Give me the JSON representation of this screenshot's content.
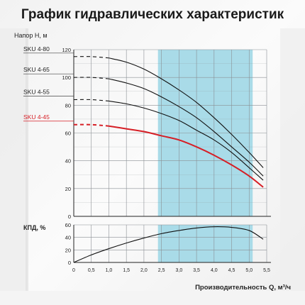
{
  "title": "График гидравлических характеристик",
  "colors": {
    "band": "#a9dbe8",
    "red": "#d61f26",
    "black": "#111111",
    "grid": "#8a8f94"
  },
  "chart_data": [
    {
      "type": "line",
      "ylabel": "Напор H, м",
      "xlim": [
        0,
        5.5
      ],
      "ylim": [
        0,
        120
      ],
      "yticks": [
        0,
        20,
        40,
        60,
        80,
        100,
        120
      ],
      "grid": true,
      "highlight_band": [
        2.4,
        5.1
      ],
      "series": [
        {
          "name": "SKU 4-80",
          "color": "#111111",
          "dashed_to": 1.0,
          "x": [
            0,
            0.5,
            1.0,
            1.5,
            2.0,
            2.5,
            3.0,
            3.5,
            4.0,
            4.5,
            5.0,
            5.4
          ],
          "y": [
            115,
            115,
            114,
            111,
            106,
            99,
            91,
            82,
            71,
            59,
            46,
            35
          ]
        },
        {
          "name": "SKU 4-65",
          "color": "#111111",
          "dashed_to": 1.0,
          "x": [
            0,
            0.5,
            1.0,
            1.5,
            2.0,
            2.5,
            3.0,
            3.5,
            4.0,
            4.5,
            5.0,
            5.4
          ],
          "y": [
            100,
            100,
            99,
            96,
            92,
            86,
            79,
            71,
            61,
            50,
            39,
            29
          ]
        },
        {
          "name": "SKU 4-55",
          "color": "#111111",
          "dashed_to": 1.0,
          "x": [
            0,
            0.5,
            1.0,
            1.5,
            2.0,
            2.5,
            3.0,
            3.5,
            4.0,
            4.5,
            5.0,
            5.4
          ],
          "y": [
            84,
            84,
            83,
            81,
            78,
            74,
            69,
            62,
            55,
            46,
            35,
            26
          ]
        },
        {
          "name": "SKU 4-45",
          "color": "#d61f26",
          "dashed_to": 1.0,
          "x": [
            0,
            0.5,
            1.0,
            1.5,
            2.0,
            2.5,
            3.0,
            3.5,
            4.0,
            4.5,
            5.0,
            5.4
          ],
          "y": [
            66,
            66,
            65,
            63,
            61,
            58,
            55,
            50,
            44,
            37,
            29,
            21
          ]
        }
      ]
    },
    {
      "type": "line",
      "ylabel": "КПД, %",
      "xlabel": "Производительность Q, м³/ч",
      "xlim": [
        0,
        5.5
      ],
      "ylim": [
        0,
        60
      ],
      "yticks": [
        0,
        20,
        40,
        60
      ],
      "xticks": [
        "0",
        "0,5",
        "1,0",
        "1,5",
        "2,0",
        "2,5",
        "3,0",
        "3,5",
        "4,0",
        "4,5",
        "5,0",
        "5,5"
      ],
      "grid": true,
      "highlight_band": [
        2.4,
        5.1
      ],
      "series": [
        {
          "color": "#111111",
          "x": [
            0,
            0.5,
            1.0,
            1.5,
            2.0,
            2.5,
            3.0,
            3.5,
            4.0,
            4.5,
            5.0,
            5.4
          ],
          "y": [
            0,
            12,
            22,
            31,
            39,
            46,
            51,
            55,
            57,
            56,
            51,
            37
          ]
        }
      ]
    }
  ]
}
